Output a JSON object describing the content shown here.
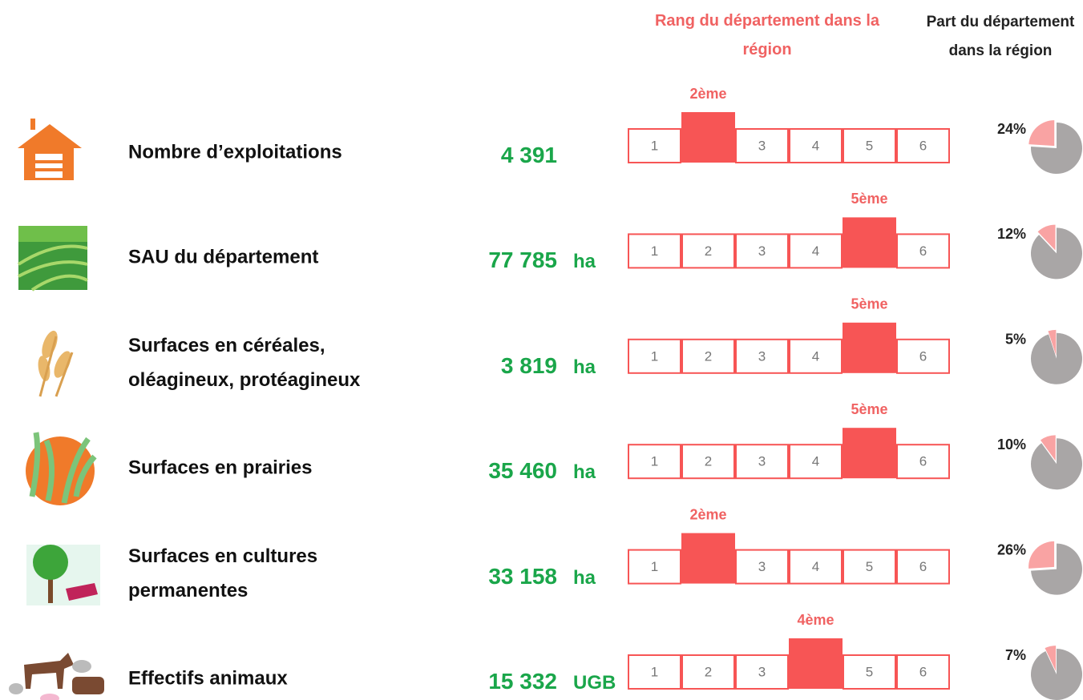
{
  "header": {
    "rank_title": "Rang du département dans la région",
    "share_title": "Part du département dans la région"
  },
  "rank_scale": [
    1,
    2,
    3,
    4,
    5,
    6
  ],
  "rows": [
    {
      "label": "Nombre d’exploitations",
      "value": "4 391",
      "rank": {
        "value": 2,
        "label": "2ème"
      },
      "share": {
        "value": 24,
        "label": "24%"
      }
    },
    {
      "label": "SAU du département",
      "value": "77 785",
      "unit": "ha",
      "rank": {
        "value": 5,
        "label": "5ème"
      },
      "share": {
        "value": 12,
        "label": "12%"
      }
    },
    {
      "label": "Surfaces en céréales, oléagineux, protéagineux",
      "value": "3 819",
      "unit": "ha",
      "rank": {
        "value": 5,
        "label": "5ème"
      },
      "share": {
        "value": 5,
        "label": "5%"
      }
    },
    {
      "label": "Surfaces en prairies",
      "value": "35 460",
      "unit": "ha",
      "rank": {
        "value": 5,
        "label": "5ème"
      },
      "share": {
        "value": 10,
        "label": "10%"
      }
    },
    {
      "label": "Surfaces en cultures permanentes",
      "value": "33 158",
      "unit": "ha",
      "rank": {
        "value": 2,
        "label": "2ème"
      },
      "share": {
        "value": 26,
        "label": "26%"
      }
    },
    {
      "label": "Effectifs animaux",
      "value": "15 332",
      "unit": "UGB",
      "rank": {
        "value": 4,
        "label": "4ème"
      },
      "share": {
        "value": 7,
        "label": "7%"
      }
    }
  ]
}
